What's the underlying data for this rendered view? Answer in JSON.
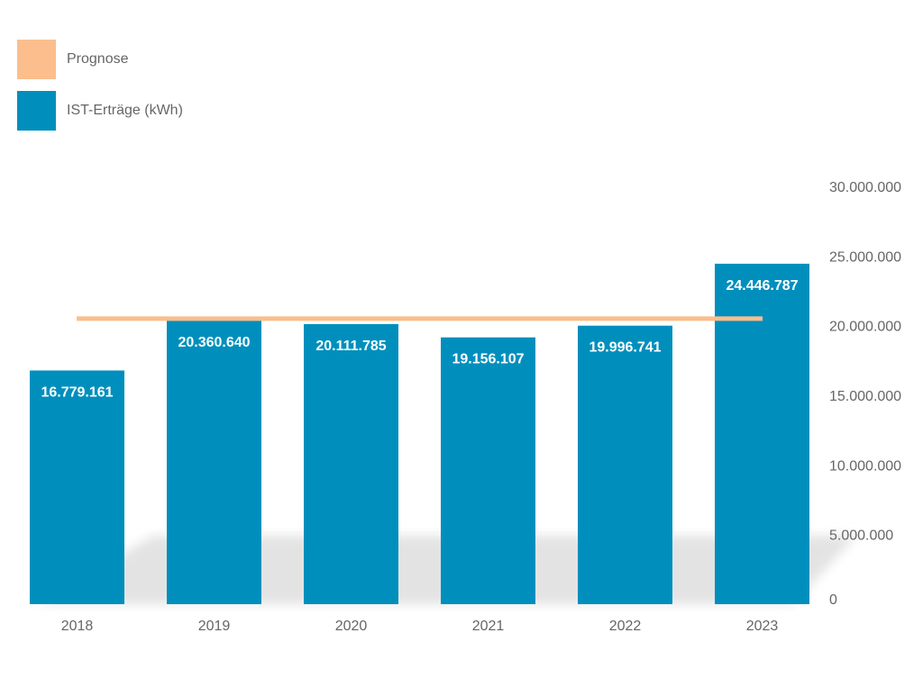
{
  "legend": {
    "items": [
      {
        "label": "Prognose",
        "color": "#fbbe8c"
      },
      {
        "label": "IST-Erträge (kWh)",
        "color": "#008fbd"
      }
    ]
  },
  "chart_data": {
    "type": "bar",
    "categories": [
      "2018",
      "2019",
      "2020",
      "2021",
      "2022",
      "2023"
    ],
    "series": [
      {
        "name": "IST-Erträge (kWh)",
        "type": "bar",
        "color": "#008fbd",
        "values": [
          16779161,
          20360640,
          20111785,
          19156107,
          19996741,
          24446787
        ],
        "value_labels": [
          "16.779.161",
          "20.360.640",
          "20.111.785",
          "19.156.107",
          "19.996.741",
          "24.446.787"
        ]
      },
      {
        "name": "Prognose",
        "type": "line",
        "color": "#fbbe8c",
        "values": [
          20500000,
          20500000,
          20500000,
          20500000,
          20500000,
          20500000
        ]
      }
    ],
    "ylim": [
      0,
      30000000
    ],
    "y_ticks": [
      0,
      5000000,
      10000000,
      15000000,
      20000000,
      25000000,
      30000000
    ],
    "y_tick_labels": [
      "0",
      "5.000.000",
      "10.000.000",
      "15.000.000",
      "20.000.000",
      "25.000.000",
      "30.000.000"
    ],
    "y_axis_side": "right",
    "legend_position": "top-left",
    "grid": false
  }
}
